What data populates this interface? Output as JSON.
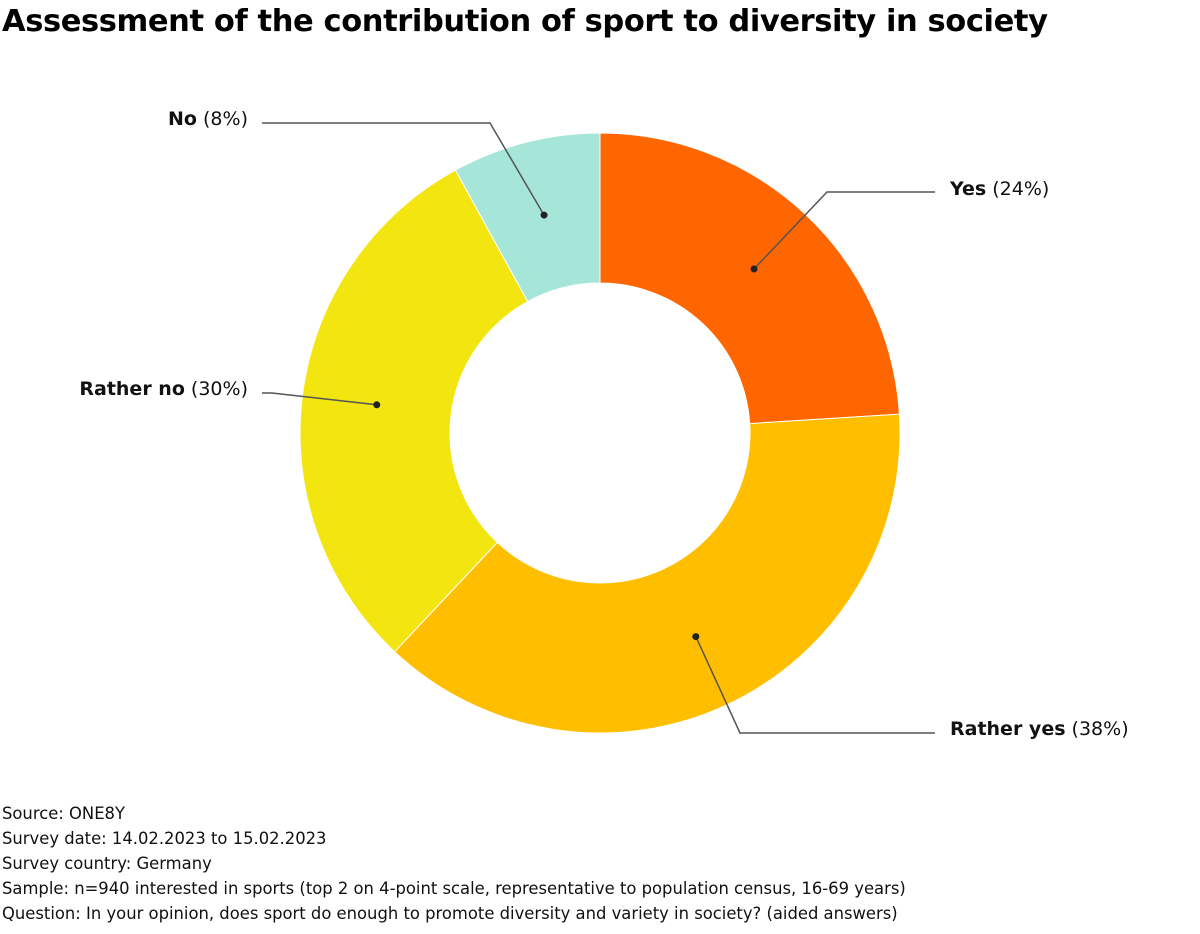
{
  "chart_data": {
    "type": "pie",
    "title": "Assessment of the contribution of sport to diversity in society",
    "slices": [
      {
        "label": "Yes",
        "pct_label": "(24%)",
        "value": 24,
        "color": "#ff6600"
      },
      {
        "label": "Rather yes",
        "pct_label": "(38%)",
        "value": 38,
        "color": "#ffbe00"
      },
      {
        "label": "Rather no",
        "pct_label": "(30%)",
        "value": 30,
        "color": "#f3e510"
      },
      {
        "label": "No",
        "pct_label": "(8%)",
        "value": 8,
        "color": "#a5e6d8"
      }
    ]
  },
  "footer": {
    "source": "Source: ONE8Y",
    "survey_date": "Survey date: 14.02.2023 to 15.02.2023",
    "survey_country": "Survey country: Germany",
    "sample": "Sample: n=940 interested in sports (top 2 on 4-point scale, representative to population census, 16-69 years)",
    "question": "Question: In your opinion, does sport do enough to promote diversity and variety in society? (aided answers)"
  }
}
